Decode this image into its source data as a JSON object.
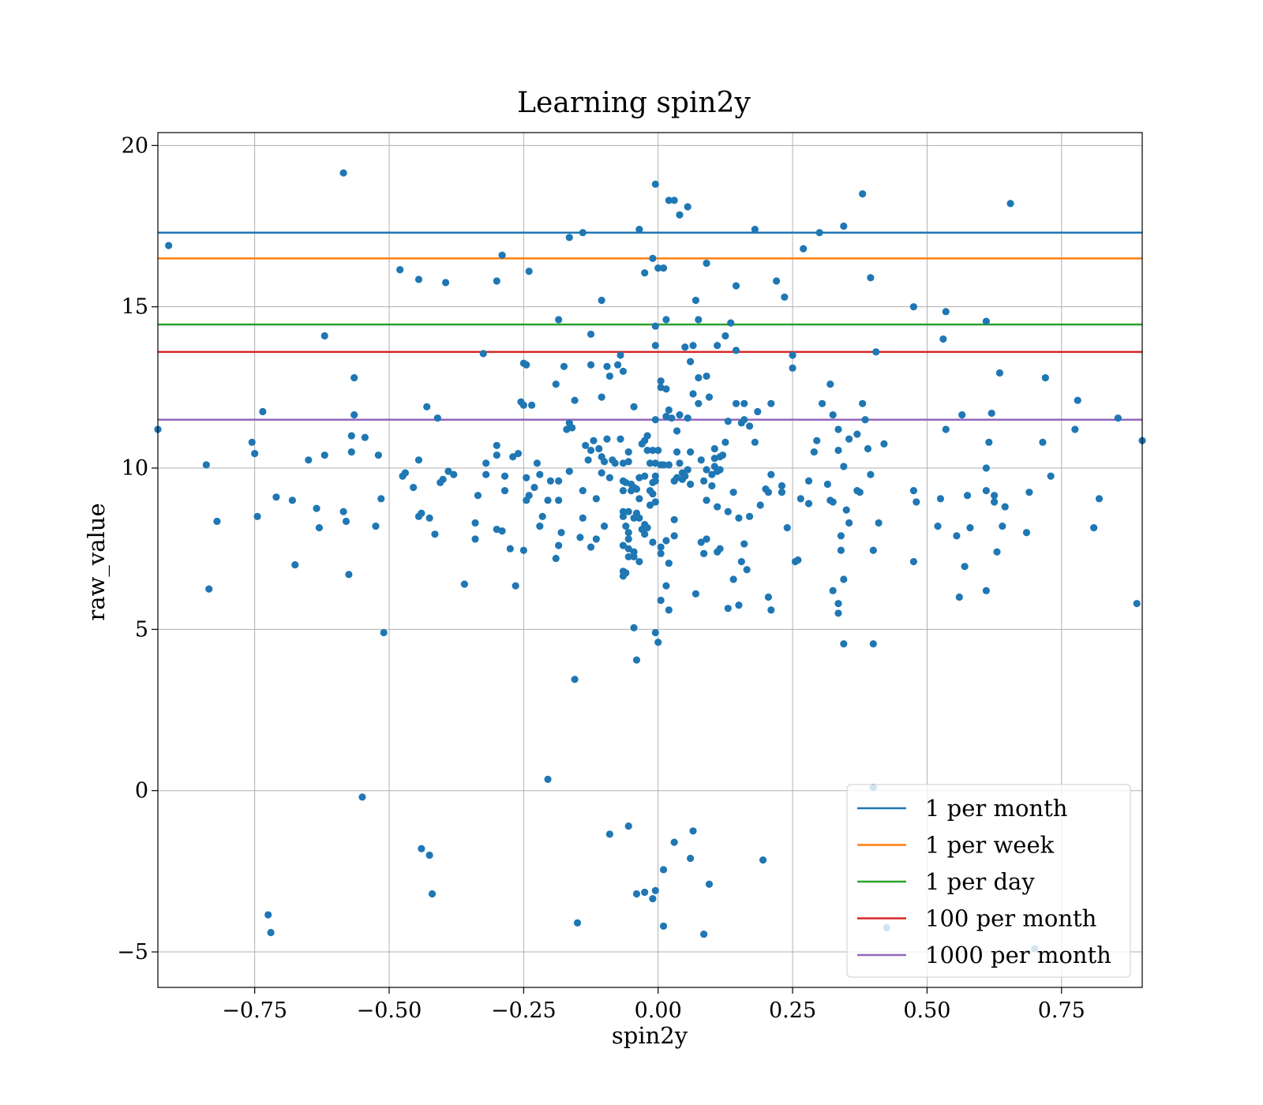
{
  "chart_data": {
    "type": "scatter",
    "title": "Learning spin2y",
    "xlabel": "spin2y",
    "ylabel": "raw_value",
    "xlim": [
      -0.93,
      0.9
    ],
    "ylim": [
      -6.1,
      20.4
    ],
    "xticks": [
      -0.75,
      -0.5,
      -0.25,
      0.0,
      0.25,
      0.5,
      0.75
    ],
    "xtick_labels": [
      "−0.75",
      "−0.50",
      "−0.25",
      "0.00",
      "0.25",
      "0.50",
      "0.75"
    ],
    "yticks": [
      -5,
      0,
      5,
      10,
      15,
      20
    ],
    "ytick_labels": [
      "−5",
      "0",
      "5",
      "10",
      "15",
      "20"
    ],
    "grid": true,
    "legend_position": "lower-right",
    "point_color": "#1f77b4",
    "hlines": [
      {
        "name": "1 per month",
        "y": 17.3,
        "color": "#1f77b4"
      },
      {
        "name": "1 per week",
        "y": 16.5,
        "color": "#ff7f0e"
      },
      {
        "name": "1 per day",
        "y": 14.45,
        "color": "#2ca02c"
      },
      {
        "name": "100 per month",
        "y": 13.6,
        "color": "#d62728"
      },
      {
        "name": "1000 per month",
        "y": 11.5,
        "color": "#9467bd"
      }
    ],
    "points": [
      [
        -0.93,
        11.2
      ],
      [
        -0.91,
        16.9
      ],
      [
        -0.84,
        10.1
      ],
      [
        -0.835,
        6.25
      ],
      [
        -0.82,
        8.35
      ],
      [
        -0.755,
        10.8
      ],
      [
        -0.75,
        10.45
      ],
      [
        -0.745,
        8.5
      ],
      [
        -0.735,
        11.75
      ],
      [
        -0.725,
        -3.85
      ],
      [
        -0.72,
        -4.4
      ],
      [
        -0.71,
        9.1
      ],
      [
        -0.68,
        9.0
      ],
      [
        -0.675,
        7.0
      ],
      [
        -0.65,
        10.25
      ],
      [
        -0.635,
        8.75
      ],
      [
        -0.63,
        8.15
      ],
      [
        -0.62,
        14.1
      ],
      [
        -0.62,
        10.4
      ],
      [
        -0.585,
        19.15
      ],
      [
        -0.585,
        8.65
      ],
      [
        -0.58,
        8.35
      ],
      [
        -0.575,
        6.7
      ],
      [
        -0.57,
        11.0
      ],
      [
        -0.57,
        10.5
      ],
      [
        -0.565,
        11.65
      ],
      [
        -0.565,
        12.8
      ],
      [
        -0.55,
        -0.2
      ],
      [
        -0.545,
        10.95
      ],
      [
        -0.525,
        8.2
      ],
      [
        -0.52,
        10.4
      ],
      [
        -0.515,
        9.05
      ],
      [
        -0.51,
        4.9
      ],
      [
        -0.48,
        16.15
      ],
      [
        -0.475,
        9.75
      ],
      [
        -0.47,
        9.85
      ],
      [
        -0.455,
        9.4
      ],
      [
        -0.445,
        15.85
      ],
      [
        -0.445,
        10.25
      ],
      [
        -0.445,
        8.5
      ],
      [
        -0.44,
        8.6
      ],
      [
        -0.44,
        -1.8
      ],
      [
        -0.43,
        11.9
      ],
      [
        -0.425,
        8.45
      ],
      [
        -0.425,
        -2.0
      ],
      [
        -0.42,
        -3.2
      ],
      [
        -0.415,
        7.95
      ],
      [
        -0.41,
        11.55
      ],
      [
        -0.405,
        9.55
      ],
      [
        -0.4,
        9.65
      ],
      [
        -0.395,
        15.75
      ],
      [
        -0.39,
        9.9
      ],
      [
        -0.38,
        9.8
      ],
      [
        -0.36,
        6.4
      ],
      [
        -0.34,
        8.3
      ],
      [
        -0.34,
        7.8
      ],
      [
        -0.335,
        9.15
      ],
      [
        -0.325,
        13.55
      ],
      [
        -0.32,
        9.8
      ],
      [
        -0.32,
        10.15
      ],
      [
        -0.3,
        15.8
      ],
      [
        -0.3,
        10.7
      ],
      [
        -0.3,
        10.4
      ],
      [
        -0.3,
        8.1
      ],
      [
        -0.29,
        16.6
      ],
      [
        -0.29,
        8.05
      ],
      [
        -0.285,
        9.75
      ],
      [
        -0.285,
        9.3
      ],
      [
        -0.275,
        7.5
      ],
      [
        -0.27,
        10.35
      ],
      [
        -0.265,
        6.35
      ],
      [
        -0.26,
        10.45
      ],
      [
        -0.255,
        12.05
      ],
      [
        -0.25,
        13.25
      ],
      [
        -0.25,
        11.95
      ],
      [
        -0.25,
        7.45
      ],
      [
        -0.245,
        13.2
      ],
      [
        -0.245,
        9.7
      ],
      [
        -0.245,
        9.0
      ],
      [
        -0.24,
        16.1
      ],
      [
        -0.24,
        9.15
      ],
      [
        -0.235,
        11.95
      ],
      [
        -0.23,
        9.4
      ],
      [
        -0.225,
        10.15
      ],
      [
        -0.22,
        8.2
      ],
      [
        -0.22,
        9.8
      ],
      [
        -0.215,
        8.5
      ],
      [
        -0.205,
        0.35
      ],
      [
        -0.205,
        9.0
      ],
      [
        -0.2,
        9.6
      ],
      [
        -0.19,
        12.6
      ],
      [
        -0.19,
        7.2
      ],
      [
        -0.185,
        14.6
      ],
      [
        -0.185,
        9.6
      ],
      [
        -0.185,
        9.0
      ],
      [
        -0.185,
        7.6
      ],
      [
        -0.18,
        8.0
      ],
      [
        -0.175,
        13.15
      ],
      [
        -0.17,
        11.2
      ],
      [
        -0.165,
        17.15
      ],
      [
        -0.165,
        11.4
      ],
      [
        -0.165,
        9.9
      ],
      [
        -0.16,
        11.25
      ],
      [
        -0.155,
        3.45
      ],
      [
        -0.155,
        12.1
      ],
      [
        -0.15,
        -4.1
      ],
      [
        -0.145,
        7.85
      ],
      [
        -0.14,
        17.3
      ],
      [
        -0.14,
        9.3
      ],
      [
        -0.14,
        8.45
      ],
      [
        -0.135,
        10.7
      ],
      [
        -0.13,
        10.25
      ],
      [
        -0.125,
        14.15
      ],
      [
        -0.125,
        13.2
      ],
      [
        -0.125,
        10.55
      ],
      [
        -0.125,
        7.55
      ],
      [
        -0.12,
        10.85
      ],
      [
        -0.115,
        9.05
      ],
      [
        -0.115,
        7.8
      ],
      [
        -0.11,
        10.6
      ],
      [
        -0.105,
        15.2
      ],
      [
        -0.105,
        12.2
      ],
      [
        -0.105,
        10.35
      ],
      [
        -0.105,
        9.85
      ],
      [
        -0.1,
        10.2
      ],
      [
        -0.1,
        8.2
      ],
      [
        -0.095,
        13.15
      ],
      [
        -0.095,
        10.9
      ],
      [
        -0.09,
        12.85
      ],
      [
        -0.09,
        9.7
      ],
      [
        -0.09,
        -1.35
      ],
      [
        -0.085,
        10.25
      ],
      [
        -0.08,
        10.15
      ],
      [
        -0.075,
        13.2
      ],
      [
        -0.07,
        13.5
      ],
      [
        -0.07,
        10.9
      ],
      [
        -0.065,
        13.0
      ],
      [
        -0.065,
        10.15
      ],
      [
        -0.065,
        9.6
      ],
      [
        -0.065,
        9.3
      ],
      [
        -0.065,
        8.65
      ],
      [
        -0.065,
        8.5
      ],
      [
        -0.065,
        7.6
      ],
      [
        -0.065,
        6.8
      ],
      [
        -0.065,
        6.65
      ],
      [
        -0.06,
        9.55
      ],
      [
        -0.06,
        8.2
      ],
      [
        -0.06,
        6.75
      ],
      [
        -0.055,
        10.5
      ],
      [
        -0.055,
        10.2
      ],
      [
        -0.055,
        8.65
      ],
      [
        -0.055,
        8.0
      ],
      [
        -0.055,
        7.8
      ],
      [
        -0.055,
        7.5
      ],
      [
        -0.055,
        7.25
      ],
      [
        -0.055,
        -1.1
      ],
      [
        -0.05,
        9.5
      ],
      [
        -0.05,
        9.3
      ],
      [
        -0.045,
        11.9
      ],
      [
        -0.045,
        9.4
      ],
      [
        -0.045,
        8.45
      ],
      [
        -0.045,
        7.4
      ],
      [
        -0.045,
        7.25
      ],
      [
        -0.045,
        5.05
      ],
      [
        -0.04,
        9.35
      ],
      [
        -0.04,
        8.6
      ],
      [
        -0.04,
        4.05
      ],
      [
        -0.04,
        -3.2
      ],
      [
        -0.035,
        17.4
      ],
      [
        -0.035,
        9.7
      ],
      [
        -0.035,
        9.05
      ],
      [
        -0.035,
        8.45
      ],
      [
        -0.035,
        7.1
      ],
      [
        -0.03,
        10.75
      ],
      [
        -0.03,
        8.1
      ],
      [
        -0.025,
        16.05
      ],
      [
        -0.025,
        10.85
      ],
      [
        -0.025,
        9.75
      ],
      [
        -0.025,
        8.25
      ],
      [
        -0.025,
        7.95
      ],
      [
        -0.025,
        -3.15
      ],
      [
        -0.02,
        11.0
      ],
      [
        -0.02,
        10.55
      ],
      [
        -0.02,
        8.15
      ],
      [
        -0.015,
        10.15
      ],
      [
        -0.015,
        9.3
      ],
      [
        -0.015,
        8.85
      ],
      [
        -0.01,
        16.5
      ],
      [
        -0.01,
        10.55
      ],
      [
        -0.01,
        9.55
      ],
      [
        -0.01,
        9.2
      ],
      [
        -0.01,
        7.7
      ],
      [
        -0.01,
        -3.35
      ],
      [
        -0.005,
        18.8
      ],
      [
        -0.005,
        14.4
      ],
      [
        -0.005,
        13.8
      ],
      [
        -0.005,
        11.5
      ],
      [
        -0.005,
        10.15
      ],
      [
        -0.005,
        9.75
      ],
      [
        -0.005,
        9.6
      ],
      [
        -0.005,
        8.95
      ],
      [
        -0.005,
        4.9
      ],
      [
        -0.005,
        -3.1
      ],
      [
        0.0,
        16.2
      ],
      [
        0.0,
        10.55
      ],
      [
        0.0,
        4.6
      ],
      [
        0.005,
        12.7
      ],
      [
        0.005,
        12.5
      ],
      [
        0.005,
        10.1
      ],
      [
        0.005,
        7.55
      ],
      [
        0.005,
        7.35
      ],
      [
        0.005,
        5.9
      ],
      [
        0.01,
        16.2
      ],
      [
        0.01,
        10.1
      ],
      [
        0.01,
        -2.45
      ],
      [
        0.01,
        -4.2
      ],
      [
        0.015,
        14.6
      ],
      [
        0.015,
        12.45
      ],
      [
        0.015,
        11.6
      ],
      [
        0.015,
        7.75
      ],
      [
        0.015,
        6.35
      ],
      [
        0.02,
        18.3
      ],
      [
        0.02,
        11.8
      ],
      [
        0.02,
        10.1
      ],
      [
        0.02,
        5.6
      ],
      [
        0.02,
        7.05
      ],
      [
        0.025,
        11.55
      ],
      [
        0.03,
        18.3
      ],
      [
        0.03,
        9.6
      ],
      [
        0.03,
        8.4
      ],
      [
        0.03,
        7.9
      ],
      [
        0.03,
        -1.6
      ],
      [
        0.035,
        11.15
      ],
      [
        0.035,
        9.7
      ],
      [
        0.035,
        10.5
      ],
      [
        0.04,
        17.85
      ],
      [
        0.04,
        11.65
      ],
      [
        0.04,
        10.15
      ],
      [
        0.045,
        9.65
      ],
      [
        0.045,
        9.85
      ],
      [
        0.05,
        13.75
      ],
      [
        0.05,
        9.75
      ],
      [
        0.055,
        18.1
      ],
      [
        0.055,
        11.55
      ],
      [
        0.055,
        9.95
      ],
      [
        0.06,
        13.3
      ],
      [
        0.06,
        10.5
      ],
      [
        0.06,
        9.5
      ],
      [
        0.06,
        -2.1
      ],
      [
        0.065,
        13.8
      ],
      [
        0.065,
        12.3
      ],
      [
        0.065,
        -1.25
      ],
      [
        0.07,
        15.2
      ],
      [
        0.07,
        6.1
      ],
      [
        0.075,
        14.6
      ],
      [
        0.075,
        12.8
      ],
      [
        0.075,
        12.0
      ],
      [
        0.08,
        10.25
      ],
      [
        0.08,
        7.7
      ],
      [
        0.085,
        9.6
      ],
      [
        0.085,
        7.35
      ],
      [
        0.085,
        -4.45
      ],
      [
        0.09,
        16.35
      ],
      [
        0.09,
        12.85
      ],
      [
        0.09,
        9.95
      ],
      [
        0.09,
        9.0
      ],
      [
        0.09,
        7.8
      ],
      [
        0.095,
        12.2
      ],
      [
        0.095,
        -2.9
      ],
      [
        0.1,
        9.8
      ],
      [
        0.1,
        9.45
      ],
      [
        0.105,
        10.6
      ],
      [
        0.105,
        10.3
      ],
      [
        0.105,
        10.05
      ],
      [
        0.11,
        13.8
      ],
      [
        0.11,
        9.9
      ],
      [
        0.11,
        8.8
      ],
      [
        0.11,
        7.4
      ],
      [
        0.115,
        10.35
      ],
      [
        0.115,
        7.5
      ],
      [
        0.115,
        9.95
      ],
      [
        0.12,
        10.4
      ],
      [
        0.125,
        14.1
      ],
      [
        0.125,
        10.8
      ],
      [
        0.13,
        11.45
      ],
      [
        0.13,
        8.65
      ],
      [
        0.13,
        5.65
      ],
      [
        0.135,
        14.5
      ],
      [
        0.14,
        9.25
      ],
      [
        0.14,
        6.55
      ],
      [
        0.145,
        15.65
      ],
      [
        0.145,
        13.65
      ],
      [
        0.145,
        12.0
      ],
      [
        0.15,
        8.45
      ],
      [
        0.15,
        5.75
      ],
      [
        0.155,
        11.4
      ],
      [
        0.155,
        7.1
      ],
      [
        0.16,
        12.0
      ],
      [
        0.16,
        11.5
      ],
      [
        0.16,
        7.65
      ],
      [
        0.165,
        6.85
      ],
      [
        0.17,
        8.5
      ],
      [
        0.17,
        11.3
      ],
      [
        0.18,
        17.4
      ],
      [
        0.18,
        10.8
      ],
      [
        0.185,
        11.75
      ],
      [
        0.19,
        8.85
      ],
      [
        0.195,
        -2.15
      ],
      [
        0.2,
        9.35
      ],
      [
        0.205,
        9.25
      ],
      [
        0.205,
        6.0
      ],
      [
        0.21,
        12.0
      ],
      [
        0.21,
        9.8
      ],
      [
        0.21,
        5.6
      ],
      [
        0.22,
        15.8
      ],
      [
        0.23,
        9.45
      ],
      [
        0.23,
        9.25
      ],
      [
        0.235,
        15.3
      ],
      [
        0.24,
        8.15
      ],
      [
        0.25,
        13.5
      ],
      [
        0.25,
        13.1
      ],
      [
        0.255,
        7.1
      ],
      [
        0.26,
        7.15
      ],
      [
        0.265,
        9.05
      ],
      [
        0.27,
        16.8
      ],
      [
        0.28,
        9.6
      ],
      [
        0.28,
        8.9
      ],
      [
        0.29,
        10.5
      ],
      [
        0.295,
        10.85
      ],
      [
        0.3,
        17.3
      ],
      [
        0.305,
        12.0
      ],
      [
        0.315,
        9.5
      ],
      [
        0.32,
        12.6
      ],
      [
        0.32,
        9.0
      ],
      [
        0.325,
        11.65
      ],
      [
        0.325,
        8.95
      ],
      [
        0.325,
        6.2
      ],
      [
        0.335,
        11.2
      ],
      [
        0.335,
        10.55
      ],
      [
        0.335,
        5.8
      ],
      [
        0.335,
        5.5
      ],
      [
        0.34,
        7.45
      ],
      [
        0.34,
        7.9
      ],
      [
        0.345,
        17.5
      ],
      [
        0.345,
        10.05
      ],
      [
        0.345,
        6.55
      ],
      [
        0.345,
        4.55
      ],
      [
        0.35,
        8.7
      ],
      [
        0.355,
        10.9
      ],
      [
        0.355,
        8.3
      ],
      [
        0.37,
        9.3
      ],
      [
        0.37,
        11.05
      ],
      [
        0.375,
        9.25
      ],
      [
        0.38,
        18.5
      ],
      [
        0.38,
        12.0
      ],
      [
        0.385,
        11.5
      ],
      [
        0.39,
        10.6
      ],
      [
        0.395,
        15.9
      ],
      [
        0.395,
        9.8
      ],
      [
        0.4,
        0.1
      ],
      [
        0.4,
        7.45
      ],
      [
        0.4,
        4.55
      ],
      [
        0.405,
        13.6
      ],
      [
        0.41,
        8.3
      ],
      [
        0.42,
        10.75
      ],
      [
        0.425,
        -4.25
      ],
      [
        0.475,
        15.0
      ],
      [
        0.475,
        7.1
      ],
      [
        0.475,
        9.3
      ],
      [
        0.48,
        8.95
      ],
      [
        0.52,
        8.2
      ],
      [
        0.525,
        9.05
      ],
      [
        0.53,
        14.0
      ],
      [
        0.535,
        14.85
      ],
      [
        0.535,
        11.2
      ],
      [
        0.555,
        7.9
      ],
      [
        0.56,
        6.0
      ],
      [
        0.565,
        11.65
      ],
      [
        0.57,
        6.95
      ],
      [
        0.575,
        9.15
      ],
      [
        0.58,
        8.15
      ],
      [
        0.61,
        14.55
      ],
      [
        0.61,
        10.0
      ],
      [
        0.61,
        9.3
      ],
      [
        0.61,
        6.2
      ],
      [
        0.615,
        10.8
      ],
      [
        0.62,
        11.7
      ],
      [
        0.625,
        9.15
      ],
      [
        0.625,
        8.95
      ],
      [
        0.63,
        7.4
      ],
      [
        0.635,
        12.95
      ],
      [
        0.64,
        8.2
      ],
      [
        0.645,
        8.8
      ],
      [
        0.655,
        18.2
      ],
      [
        0.685,
        8.0
      ],
      [
        0.69,
        9.25
      ],
      [
        0.7,
        -4.9
      ],
      [
        0.715,
        10.8
      ],
      [
        0.72,
        12.8
      ],
      [
        0.73,
        9.75
      ],
      [
        0.775,
        11.2
      ],
      [
        0.78,
        12.1
      ],
      [
        0.81,
        8.15
      ],
      [
        0.82,
        9.05
      ],
      [
        0.855,
        11.55
      ],
      [
        0.89,
        5.8
      ],
      [
        0.9,
        10.85
      ]
    ]
  }
}
